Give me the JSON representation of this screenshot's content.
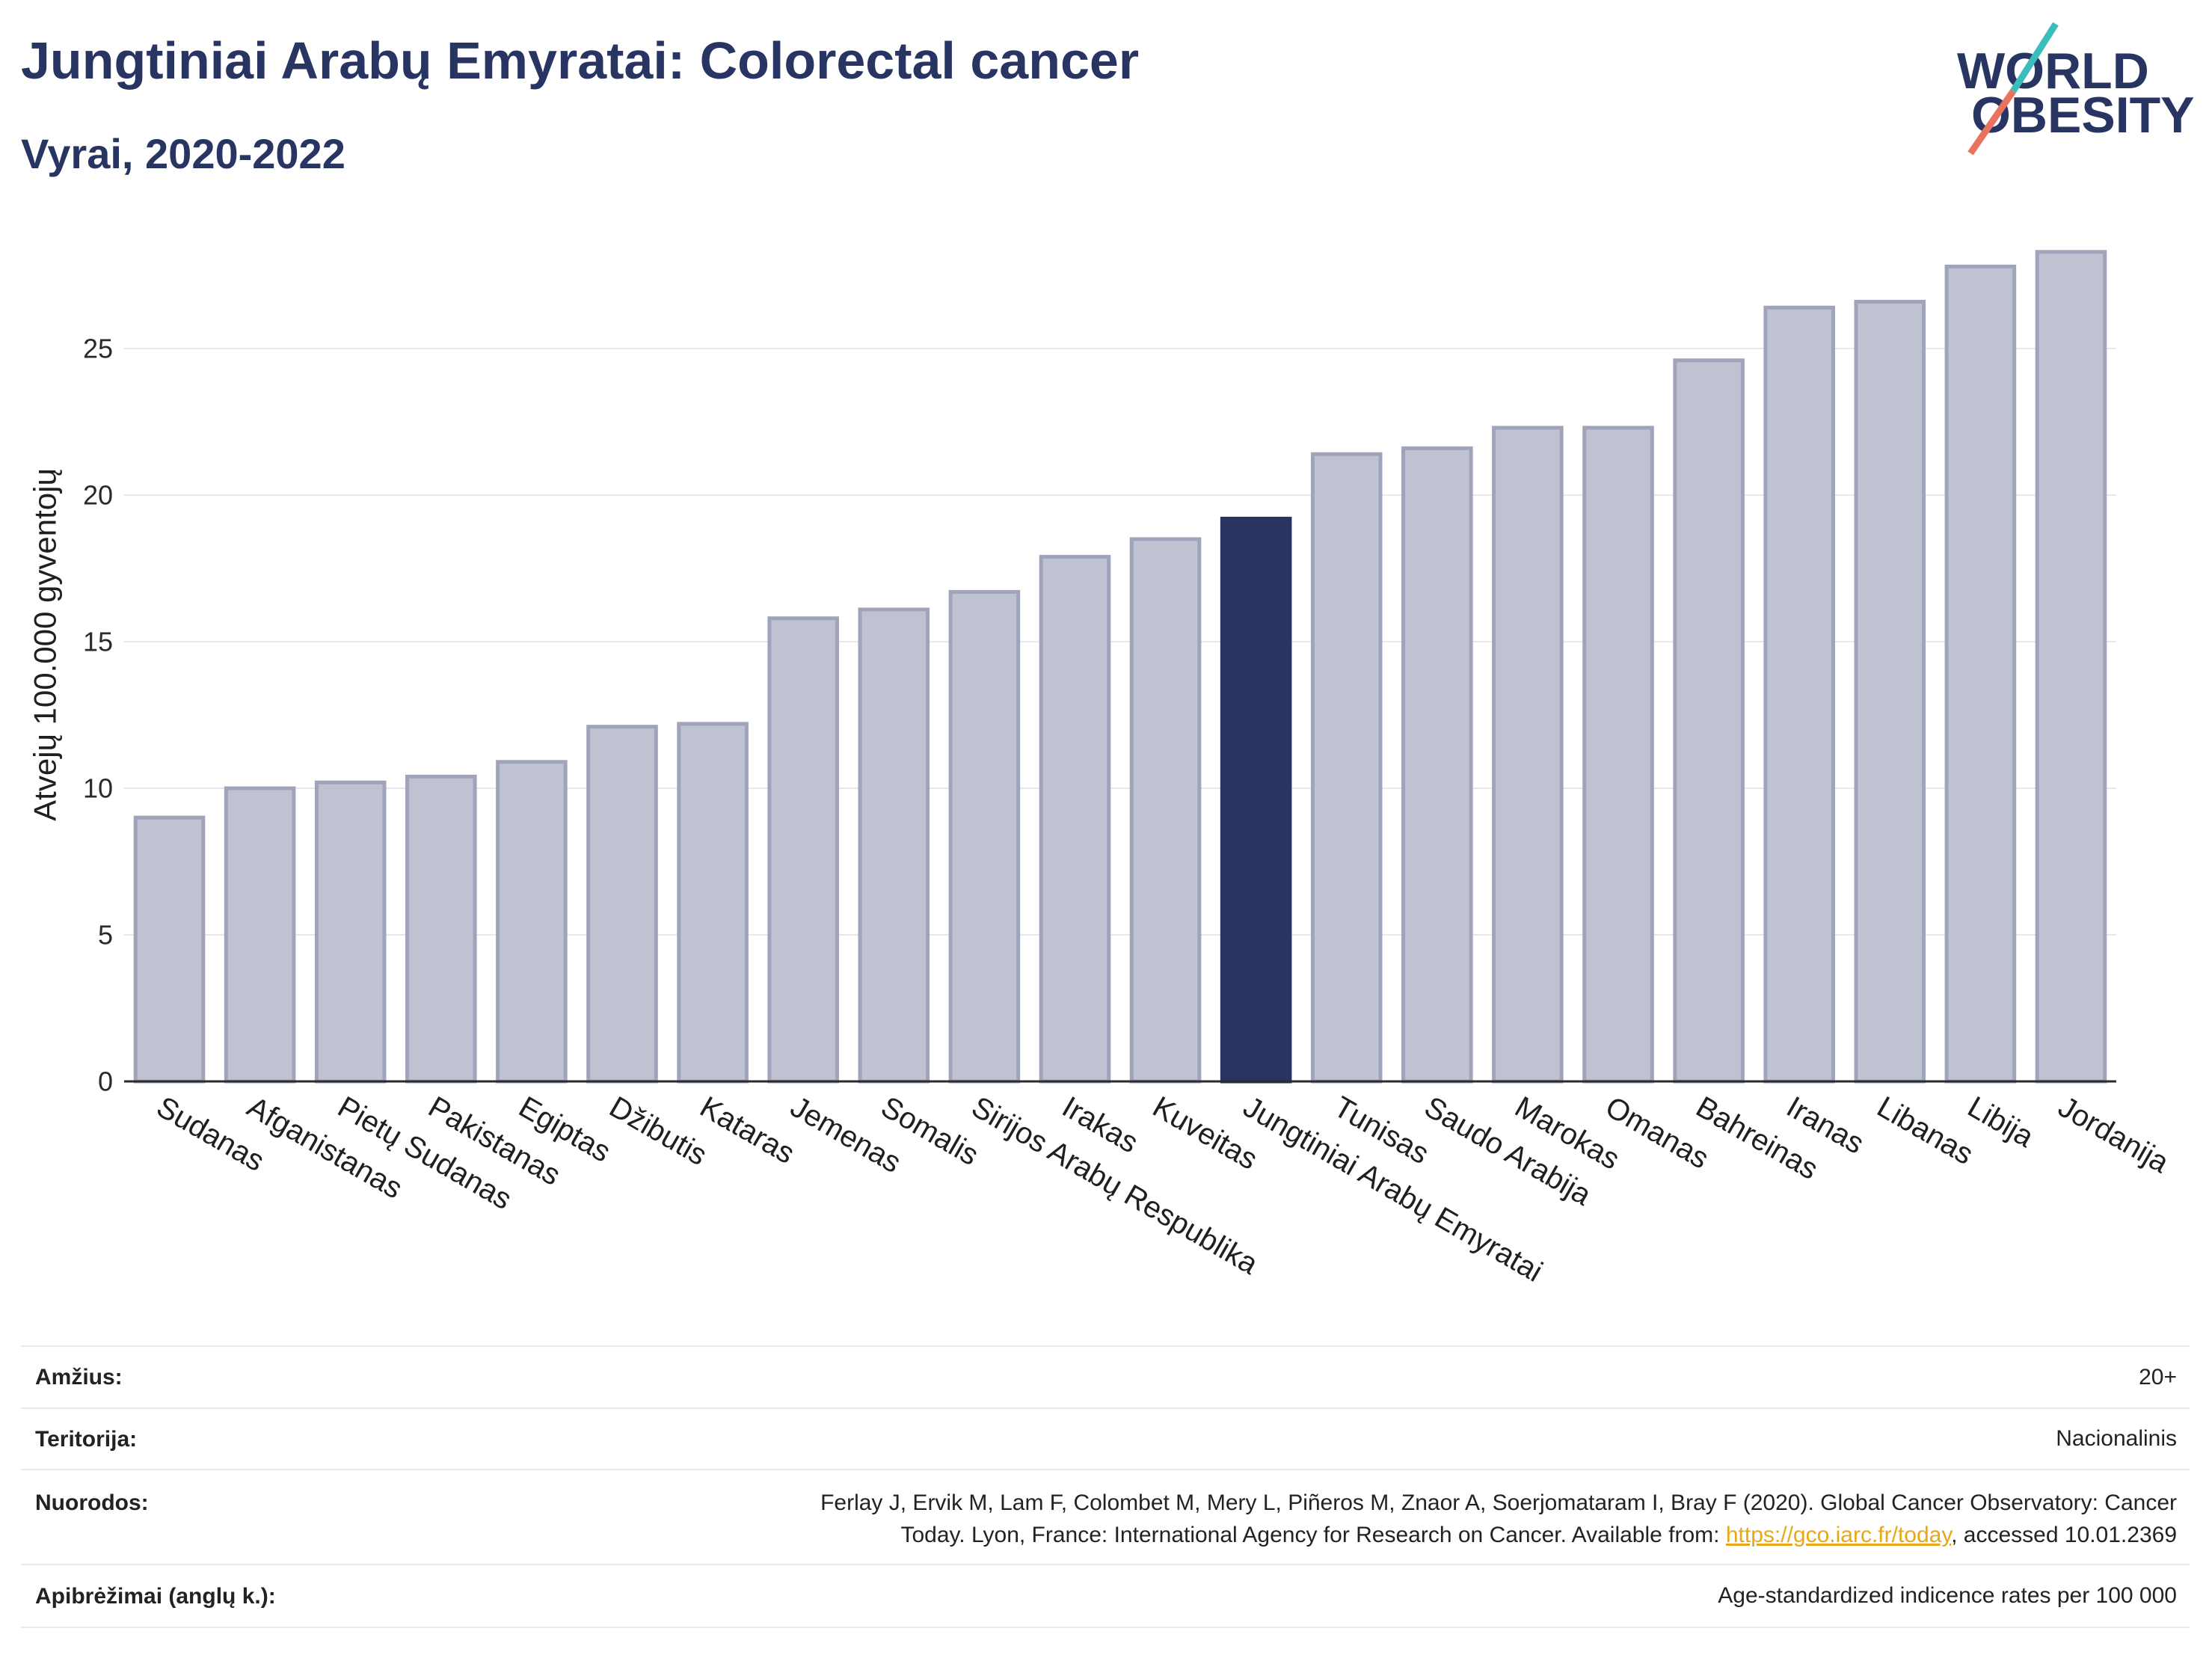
{
  "header": {
    "title": "Jungtiniai Arabų Emyratai: Colorectal cancer",
    "subtitle": "Vyrai, 2020-2022"
  },
  "logo": {
    "line1": "WORLD",
    "line2": "OBESITY"
  },
  "colors": {
    "brand_navy": "#283462",
    "bar_fill": "#bfc2d0",
    "bar_stroke": "#a0a4bb",
    "highlight_bar": "#283462",
    "gridline": "#e6e8ec",
    "axis_line": "#2b2b2b",
    "logo_slash_top": "#3dbcbc",
    "logo_slash_bottom": "#e8735f",
    "link": "#e6a817",
    "table_rule": "#e8eaee"
  },
  "chart_data": {
    "type": "bar",
    "categories": [
      "Sudanas",
      "Afganistanas",
      "Pietų Sudanas",
      "Pakistanas",
      "Egiptas",
      "Džibutis",
      "Kataras",
      "Jemenas",
      "Somalis",
      "Sirijos Arabų Respublika",
      "Irakas",
      "Kuveitas",
      "Jungtiniai Arabų Emyratai",
      "Tunisas",
      "Saudo Arabija",
      "Marokas",
      "Omanas",
      "Bahreinas",
      "Iranas",
      "Libanas",
      "Libija",
      "Jordanija"
    ],
    "values": [
      9.0,
      10.0,
      10.2,
      10.4,
      10.9,
      12.1,
      12.2,
      15.8,
      16.1,
      16.7,
      17.9,
      18.5,
      19.2,
      21.4,
      21.6,
      22.3,
      22.3,
      24.6,
      26.4,
      26.6,
      27.8,
      28.3
    ],
    "highlight_index": 12,
    "ylabel": "Atvejų 100.000 gyventojų",
    "yticks": [
      0,
      5,
      10,
      15,
      20,
      25
    ],
    "ylim": [
      0,
      29.8
    ],
    "grid": true
  },
  "info_table": {
    "rows": [
      {
        "label": "Amžius:",
        "value": "20+"
      },
      {
        "label": "Teritorija:",
        "value": "Nacionalinis"
      },
      {
        "label": "Nuorodos:",
        "value_line1": "Ferlay J, Ervik M, Lam F, Colombet M, Mery L, Piñeros M, Znaor A, Soerjomataram I, Bray F (2020). Global Cancer Observatory: Cancer",
        "value_line2_before_link": "Today. Lyon, France: International Agency for Research on Cancer. Available from: ",
        "link_text": "https://gco.iarc.fr/today",
        "value_line2_after_link": ", accessed 10.01.2369"
      },
      {
        "label": "Apibrėžimai (anglų k.):",
        "value": "Age-standardized indicence rates per 100 000"
      }
    ]
  }
}
